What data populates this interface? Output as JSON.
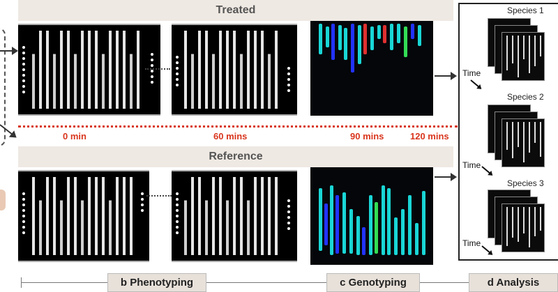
{
  "figure": {
    "treated_title": "Treated",
    "reference_title": "Reference",
    "time_labels": [
      "0 min",
      "60 mins",
      "90 mins",
      "120 mins"
    ],
    "species_labels": [
      "Species 1",
      "Species 2",
      "Species 3"
    ],
    "time_axis_label": "Time",
    "stages": [
      "b Phenotyping",
      "c Genotyping",
      "d Analysis"
    ],
    "colors": {
      "accent_red": "#d9361e",
      "band": "#efe9e3",
      "cyan": "#19d6d6",
      "blue": "#2233ff",
      "red": "#e03030",
      "green": "#33dd55"
    }
  }
}
